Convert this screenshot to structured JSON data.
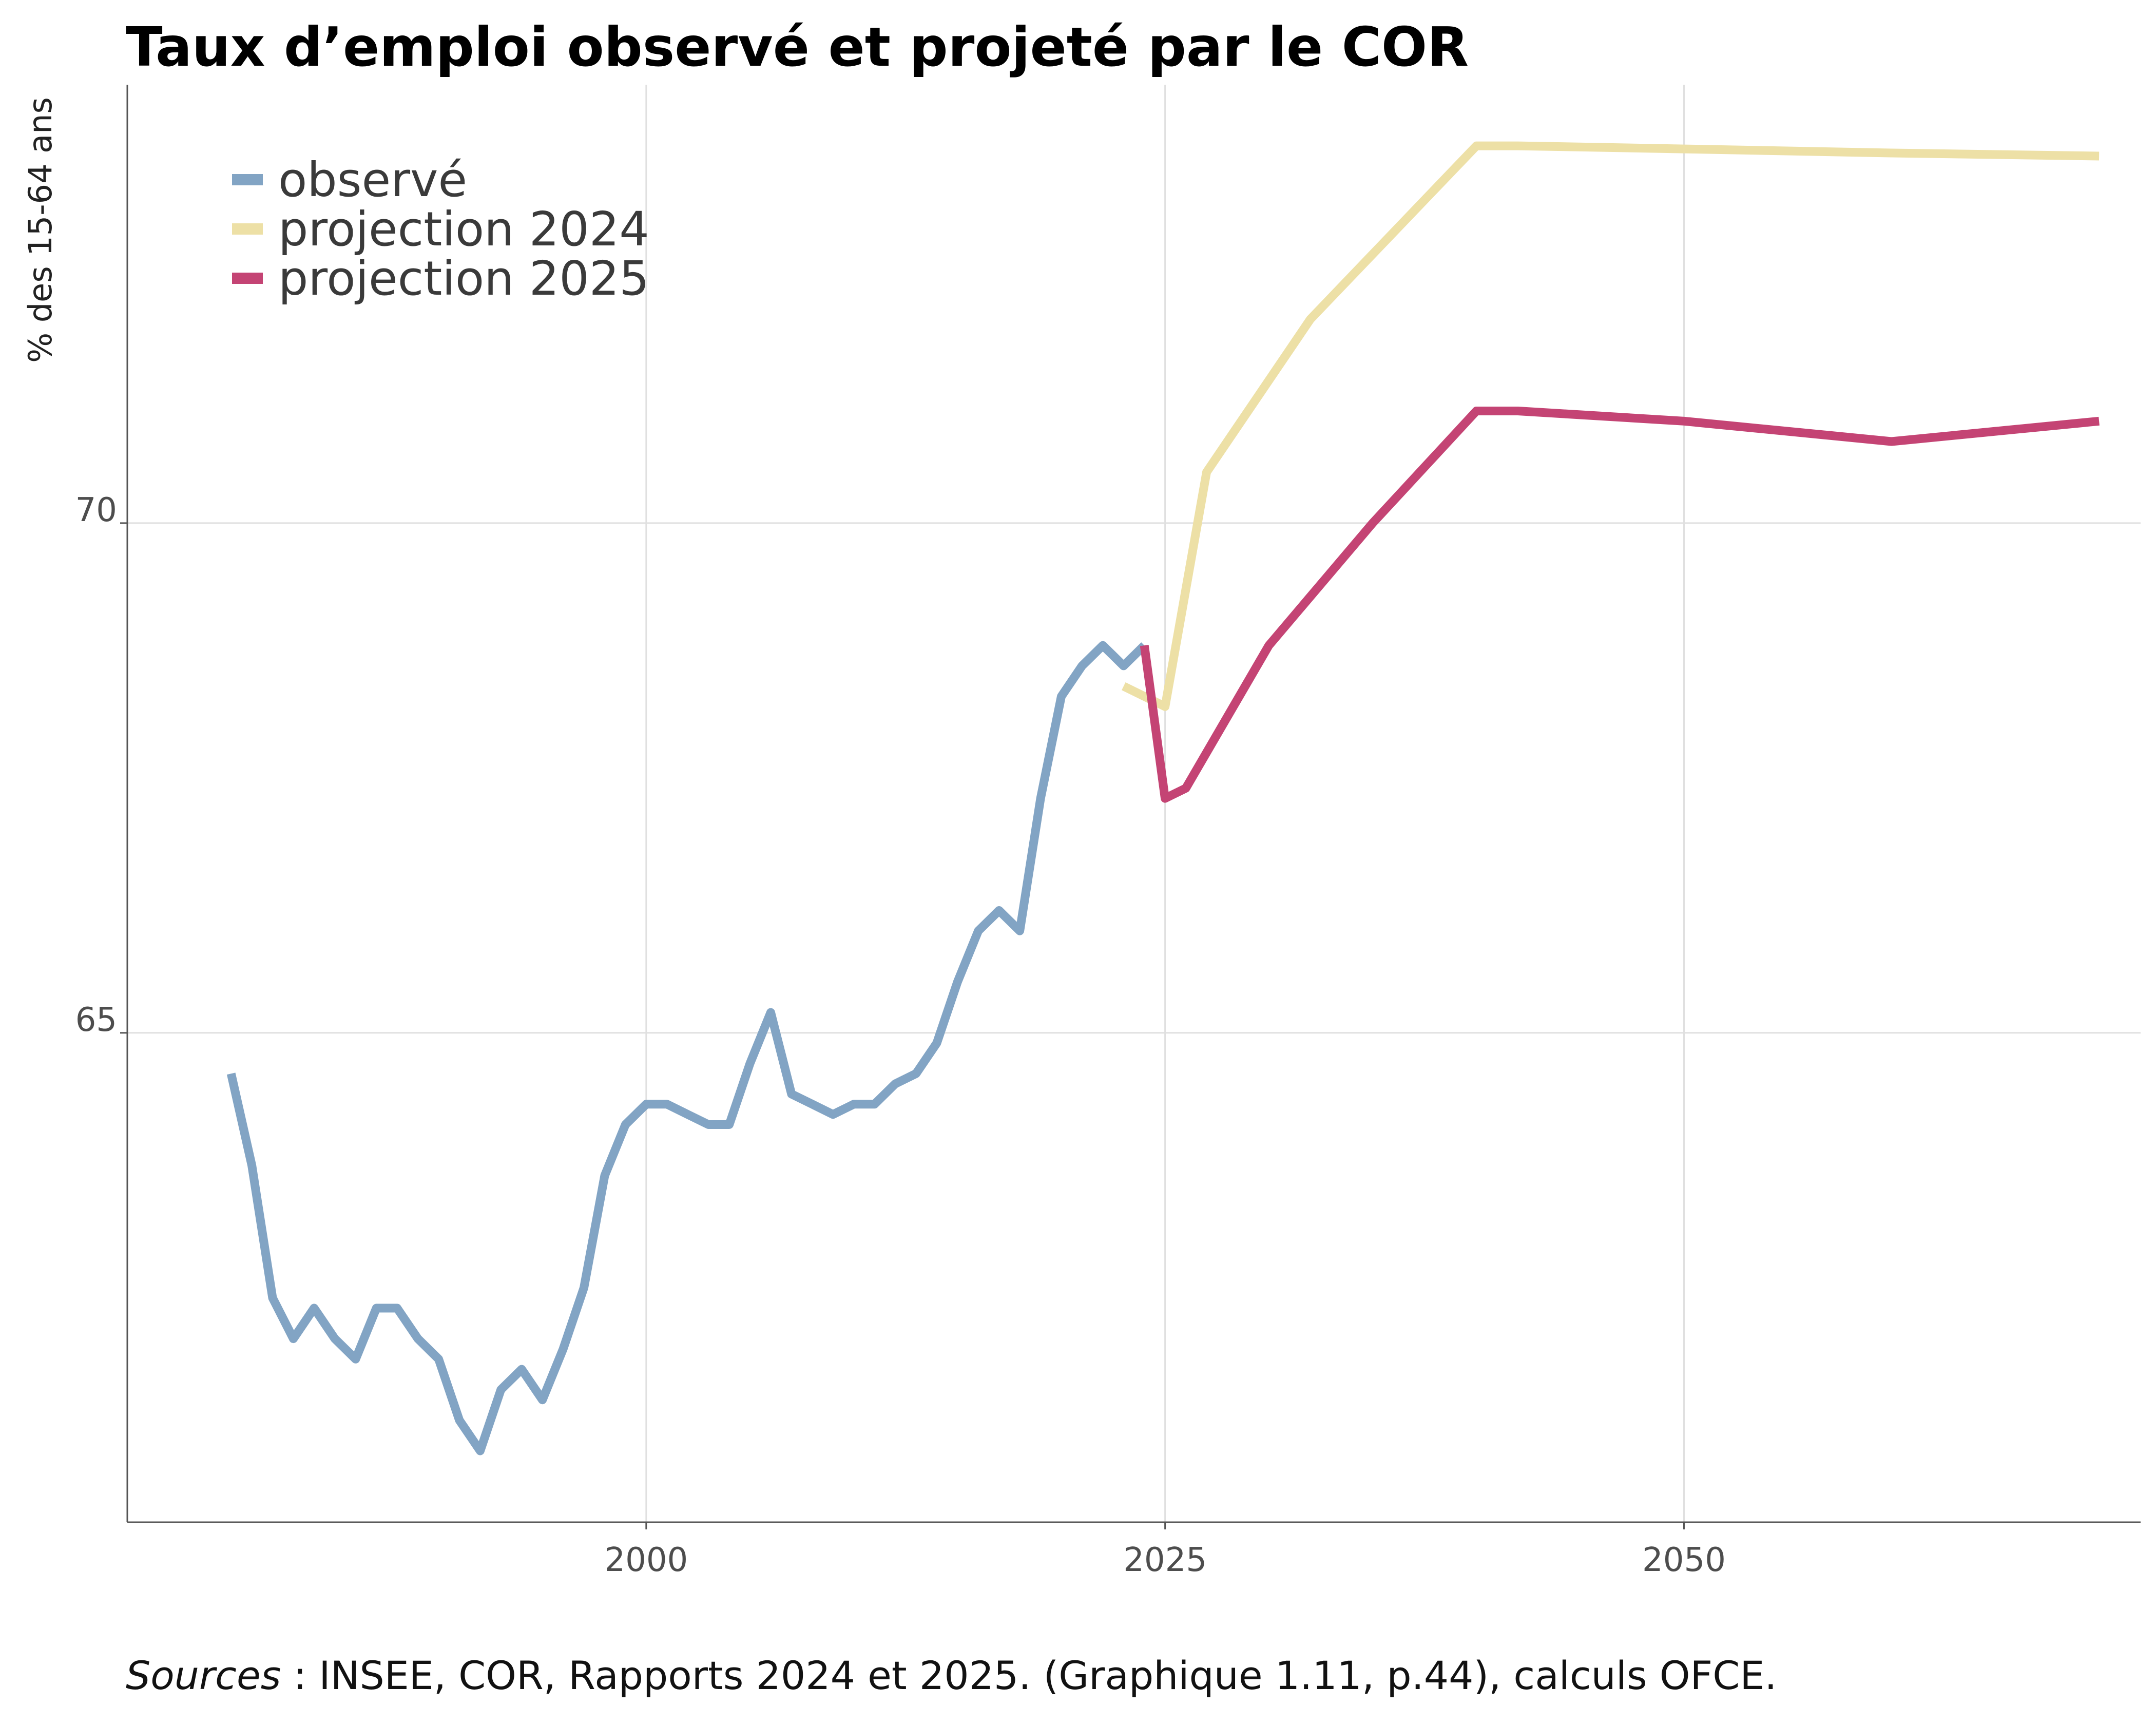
{
  "chart_data": {
    "type": "line",
    "title": "Taux d’emploi observé et projeté par le COR",
    "ylabel": "% des 15-64 ans",
    "xlabel": "",
    "xlim": [
      1975,
      2072
    ],
    "ylim": [
      60.2,
      74.3
    ],
    "x_ticks": [
      2000,
      2025,
      2050
    ],
    "x_tick_labels": [
      "2000",
      "2025",
      "2050"
    ],
    "y_ticks": [
      65,
      70
    ],
    "y_tick_labels": [
      "65",
      "70"
    ],
    "grid": true,
    "legend_position": "top-left",
    "series": [
      {
        "name": "observé",
        "color": "#82a4c4",
        "x": [
          1980,
          1981,
          1982,
          1983,
          1984,
          1985,
          1986,
          1987,
          1988,
          1989,
          1990,
          1991,
          1992,
          1993,
          1994,
          1995,
          1996,
          1997,
          1998,
          1999,
          2000,
          2001,
          2002,
          2003,
          2004,
          2005,
          2006,
          2007,
          2008,
          2009,
          2010,
          2011,
          2012,
          2013,
          2014,
          2015,
          2016,
          2017,
          2018,
          2019,
          2020,
          2021,
          2022,
          2023,
          2024
        ],
        "values": [
          64.6,
          63.7,
          62.4,
          62.0,
          62.3,
          62.0,
          61.8,
          62.3,
          62.3,
          62.0,
          61.8,
          61.2,
          60.9,
          61.5,
          61.7,
          61.4,
          61.9,
          62.5,
          63.6,
          64.1,
          64.3,
          64.3,
          64.2,
          64.1,
          64.1,
          64.7,
          65.2,
          64.4,
          64.3,
          64.2,
          64.3,
          64.3,
          64.5,
          64.6,
          64.9,
          65.5,
          66.0,
          66.2,
          66.0,
          67.3,
          68.3,
          68.6,
          68.8,
          68.6,
          68.8
        ]
      },
      {
        "name": "projection 2024",
        "color": "#ede0a6",
        "x": [
          2023,
          2025,
          2027,
          2032,
          2040,
          2042,
          2050,
          2060,
          2070
        ],
        "values": [
          68.4,
          68.2,
          70.5,
          72.0,
          73.7,
          73.7,
          73.67,
          73.63,
          73.6
        ]
      },
      {
        "name": "projection 2025",
        "color": "#c44474",
        "x": [
          2024,
          2025,
          2026,
          2030,
          2035,
          2040,
          2042,
          2050,
          2060,
          2070
        ],
        "values": [
          68.8,
          67.3,
          67.4,
          68.8,
          70.0,
          71.1,
          71.1,
          71.0,
          70.8,
          71.0
        ]
      }
    ]
  },
  "source_note": {
    "label": "Sources",
    "text": " : INSEE, COR, Rapports 2024 et 2025. (Graphique 1.11, p.44), calculs OFCE."
  }
}
